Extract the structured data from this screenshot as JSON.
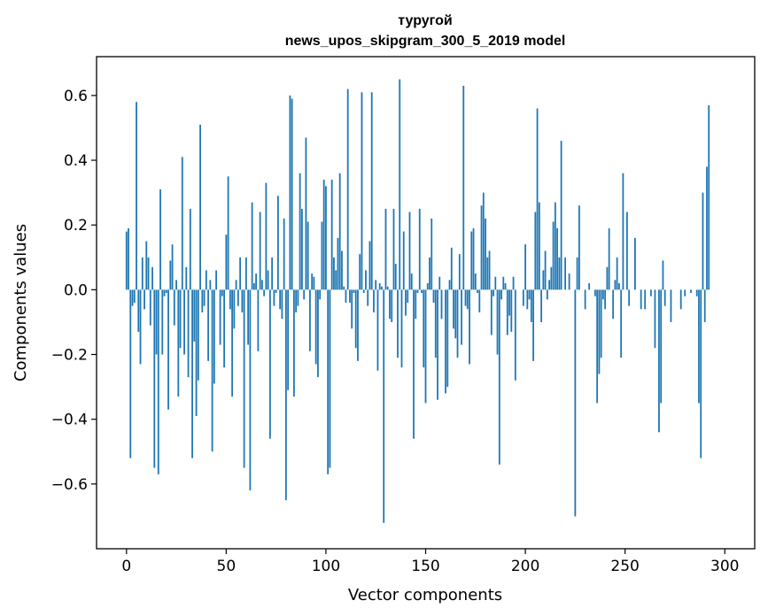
{
  "chart_data": {
    "type": "bar",
    "title_line1": "туругой",
    "title_line2": "news_upos_skipgram_300_5_2019 model",
    "xlabel": "Vector components",
    "ylabel": "Components values",
    "xlim": [
      -15,
      315
    ],
    "ylim": [
      -0.8,
      0.72
    ],
    "xticks": [
      0,
      50,
      100,
      150,
      200,
      250,
      300
    ],
    "xtick_labels": [
      "0",
      "50",
      "100",
      "150",
      "200",
      "250",
      "300"
    ],
    "yticks": [
      -0.6,
      -0.4,
      -0.2,
      0.0,
      0.2,
      0.4,
      0.6
    ],
    "ytick_labels": [
      "−0.6",
      "−0.4",
      "−0.2",
      "0.0",
      "0.2",
      "0.4",
      "0.6"
    ],
    "color": "#1f77b4",
    "values": [
      0.18,
      0.19,
      -0.52,
      -0.05,
      -0.04,
      0.58,
      -0.13,
      -0.23,
      0.1,
      -0.06,
      0.15,
      0.1,
      -0.11,
      0.07,
      -0.55,
      -0.2,
      -0.57,
      0.31,
      -0.2,
      -0.02,
      -0.01,
      -0.37,
      0.09,
      0.14,
      -0.11,
      0.03,
      -0.33,
      -0.18,
      0.41,
      -0.2,
      0.07,
      -0.27,
      0.25,
      -0.52,
      -0.16,
      -0.39,
      -0.28,
      0.51,
      -0.07,
      -0.05,
      0.06,
      -0.22,
      0.03,
      -0.5,
      -0.29,
      0.06,
      0.0,
      -0.17,
      -0.02,
      -0.24,
      0.17,
      0.35,
      -0.06,
      -0.33,
      -0.12,
      0.03,
      -0.05,
      0.1,
      -0.07,
      -0.55,
      0.1,
      -0.17,
      -0.62,
      0.27,
      0.02,
      0.05,
      -0.19,
      0.24,
      0.03,
      -0.02,
      0.33,
      0.06,
      -0.46,
      0.1,
      -0.05,
      -0.01,
      0.29,
      -0.06,
      -0.09,
      0.22,
      -0.65,
      -0.31,
      0.6,
      0.59,
      -0.33,
      -0.07,
      -0.05,
      0.36,
      0.25,
      -0.03,
      0.47,
      0.21,
      -0.19,
      0.05,
      0.04,
      -0.23,
      -0.27,
      -0.03,
      0.21,
      0.34,
      0.32,
      -0.57,
      -0.55,
      0.34,
      0.1,
      0.06,
      0.16,
      0.36,
      0.12,
      0.01,
      -0.04,
      0.62,
      -0.04,
      -0.12,
      -0.01,
      -0.18,
      -0.22,
      0.11,
      0.61,
      -0.01,
      0.06,
      -0.05,
      0.15,
      0.61,
      -0.07,
      0.03,
      -0.25,
      0.02,
      0.01,
      -0.72,
      0.25,
      0.01,
      -0.09,
      -0.1,
      0.25,
      0.08,
      -0.21,
      0.65,
      -0.24,
      0.18,
      -0.08,
      -0.04,
      0.24,
      0.05,
      -0.46,
      -0.09,
      -0.01,
      0.25,
      -0.01,
      -0.24,
      -0.35,
      0.02,
      0.1,
      0.22,
      -0.04,
      -0.21,
      -0.34,
      0.04,
      -0.09,
      0.0,
      -0.32,
      -0.3,
      0.03,
      0.13,
      -0.12,
      -0.15,
      -0.21,
      0.11,
      -0.17,
      0.63,
      -0.05,
      -0.06,
      -0.23,
      0.18,
      0.19,
      0.05,
      -0.01,
      -0.07,
      0.26,
      0.3,
      0.22,
      0.1,
      0.12,
      -0.14,
      -0.02,
      0.04,
      -0.2,
      -0.54,
      -0.03,
      0.04,
      0.02,
      -0.14,
      -0.08,
      -0.13,
      0.04,
      -0.28,
      0.0,
      0.0,
      0.0,
      -0.05,
      0.14,
      -0.06,
      -0.03,
      -0.1,
      -0.22,
      0.24,
      0.56,
      0.27,
      -0.1,
      0.06,
      0.12,
      -0.03,
      0.03,
      0.07,
      0.21,
      0.27,
      0.19,
      0.1,
      0.46,
      0.0,
      0.1,
      0.0,
      0.05,
      0.0,
      0.0,
      -0.7,
      0.1,
      0.26,
      0.0,
      0.0,
      -0.06,
      0.0,
      0.02,
      0.0,
      0.0,
      -0.02,
      -0.35,
      -0.26,
      -0.21,
      -0.03,
      -0.06,
      0.07,
      0.19,
      0.0,
      -0.09,
      0.03,
      0.1,
      0.02,
      -0.21,
      0.36,
      0.0,
      0.24,
      -0.05,
      0.0,
      0.0,
      0.16,
      0.0,
      0.0,
      -0.06,
      0.0,
      -0.06,
      0.0,
      0.0,
      -0.02,
      0.0,
      -0.18,
      0.0,
      -0.44,
      -0.35,
      0.09,
      -0.05,
      0.0,
      0.0,
      -0.1,
      0.0,
      0.0,
      0.0,
      0.0,
      -0.06,
      0.0,
      -0.02,
      0.0,
      0.0,
      -0.01,
      0.0,
      0.0,
      -0.02,
      -0.35,
      -0.52,
      0.3,
      -0.1,
      0.38,
      0.57,
      0.0,
      0.0
    ]
  }
}
